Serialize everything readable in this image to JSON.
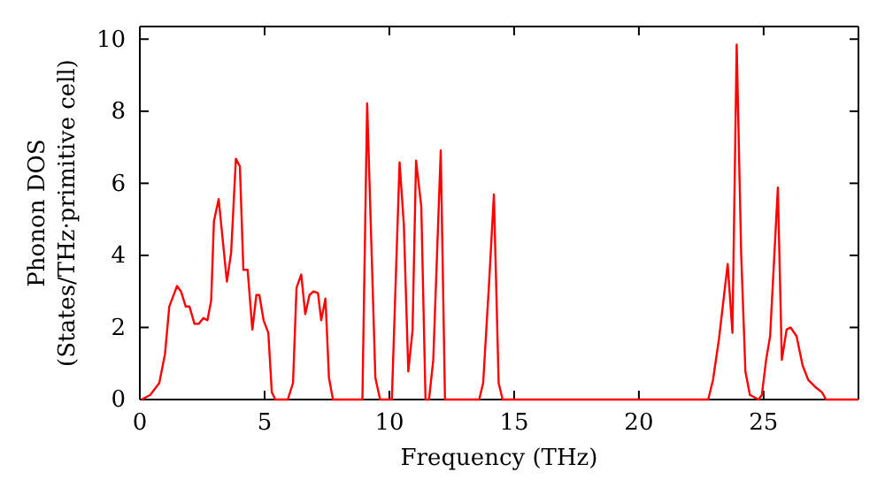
{
  "chart_data": {
    "type": "line",
    "xlabel": "Frequency (THz)",
    "ylabel": "Phonon DOS\n(States/THz·primitive cell)",
    "xlim": [
      0,
      28.8
    ],
    "ylim": [
      0,
      10.35
    ],
    "xticks": [
      0,
      5,
      10,
      15,
      20,
      25
    ],
    "yticks": [
      0,
      2,
      4,
      6,
      8,
      10
    ],
    "marker": "none",
    "line_style": "solid",
    "series": [
      {
        "color": "#ff0000",
        "x": [
          0.07,
          0.42,
          0.78,
          1.01,
          1.18,
          1.49,
          1.65,
          1.84,
          1.99,
          2.19,
          2.36,
          2.55,
          2.71,
          2.86,
          2.97,
          3.16,
          3.49,
          3.66,
          3.85,
          4.01,
          4.15,
          4.32,
          4.51,
          4.67,
          4.79,
          4.96,
          5.15,
          5.29,
          5.43,
          5.93,
          6.14,
          6.28,
          6.47,
          6.63,
          6.8,
          6.96,
          7.14,
          7.27,
          7.44,
          7.58,
          7.74,
          8.92,
          9.11,
          9.44,
          9.63,
          10.1,
          10.41,
          10.58,
          10.76,
          10.93,
          11.07,
          11.28,
          11.45,
          11.59,
          11.76,
          12.06,
          12.23,
          13.6,
          13.76,
          14.0,
          14.19,
          14.38,
          14.54,
          22.78,
          22.97,
          23.21,
          23.56,
          23.75,
          23.92,
          24.1,
          24.27,
          24.45,
          24.8,
          24.93,
          25.1,
          25.26,
          25.57,
          25.73,
          25.92,
          26.08,
          26.32,
          26.56,
          26.79,
          27.1,
          27.34,
          27.5,
          28.8
        ],
        "values": [
          0,
          0.13,
          0.46,
          1.27,
          2.58,
          3.15,
          3.0,
          2.58,
          2.58,
          2.1,
          2.1,
          2.26,
          2.2,
          2.75,
          4.95,
          5.56,
          3.27,
          4.08,
          6.68,
          6.47,
          3.6,
          3.6,
          1.94,
          2.9,
          2.9,
          2.2,
          1.85,
          0.2,
          0,
          0,
          0.46,
          3.1,
          3.47,
          2.37,
          2.9,
          3.0,
          2.95,
          2.2,
          2.8,
          0.6,
          0,
          0,
          8.22,
          0.6,
          0,
          0,
          6.58,
          4.87,
          0.78,
          1.92,
          6.63,
          5.36,
          0,
          0,
          1.1,
          6.91,
          0,
          0,
          0.46,
          3.27,
          5.69,
          0.46,
          0,
          0,
          0.54,
          1.68,
          3.76,
          1.85,
          9.85,
          4.05,
          0.78,
          0.13,
          0,
          0.13,
          1.1,
          1.76,
          5.88,
          1.1,
          1.94,
          2.0,
          1.76,
          0.95,
          0.54,
          0.33,
          0.2,
          0,
          0
        ]
      }
    ]
  }
}
